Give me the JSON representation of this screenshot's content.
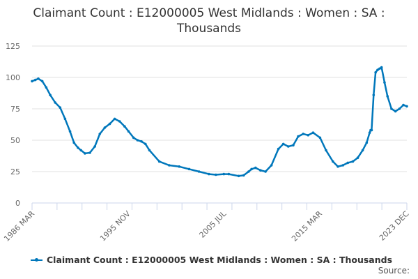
{
  "chart_data": {
    "type": "line",
    "title": "Claimant Count : E12000005 West Midlands : Women : SA : Thousands",
    "xlabel": "",
    "ylabel": "",
    "ylim": [
      0,
      125
    ],
    "yticks": [
      0,
      25,
      50,
      75,
      100,
      125
    ],
    "xtick_labels": [
      "1986 MAR",
      "1995 NOV",
      "2005 JUL",
      "2015 MAR",
      "2023 DEC"
    ],
    "grid": true,
    "legend_position": "bottom",
    "color": "#0077bb",
    "series": [
      {
        "name": "Claimant Count : E12000005 West Midlands : Women : SA : Thousands",
        "x": [
          1986.17,
          1986.5,
          1986.8,
          1987.2,
          1987.6,
          1988.0,
          1988.5,
          1989.0,
          1989.5,
          1990.0,
          1990.4,
          1990.8,
          1991.1,
          1991.5,
          1992.0,
          1992.5,
          1993.0,
          1993.5,
          1994.0,
          1994.5,
          1995.0,
          1995.5,
          1995.9,
          1996.4,
          1996.8,
          1997.2,
          1997.6,
          1998.0,
          1999.0,
          2000.0,
          2001.0,
          2002.0,
          2003.0,
          2004.0,
          2004.7,
          2005.5,
          2006.0,
          2007.0,
          2007.5,
          2008.0,
          2008.3,
          2008.7,
          2009.2,
          2009.7,
          2010.3,
          2011.0,
          2011.5,
          2012.0,
          2012.5,
          2013.0,
          2013.5,
          2014.0,
          2014.5,
          2015.2,
          2015.8,
          2016.5,
          2017.0,
          2017.5,
          2018.0,
          2018.5,
          2019.0,
          2019.5,
          2019.9,
          2020.2,
          2020.3,
          2020.4,
          2020.6,
          2020.8,
          2021.0,
          2021.2,
          2021.4,
          2021.7,
          2022.0,
          2022.4,
          2022.8,
          2023.2,
          2023.6,
          2023.95
        ],
        "values": [
          97,
          98,
          99,
          97,
          92,
          86,
          80,
          76,
          67,
          57,
          48,
          44,
          42,
          39.5,
          40,
          45,
          55,
          60,
          63,
          67,
          65,
          61,
          57,
          52,
          50,
          49,
          47,
          42,
          33,
          30,
          29,
          27,
          25,
          23,
          22.5,
          23,
          23,
          21.5,
          22,
          25,
          27,
          28,
          26,
          25,
          30,
          43,
          47,
          45,
          46,
          53,
          55,
          54,
          56,
          52,
          42,
          33,
          29,
          30,
          32,
          33,
          36,
          42,
          48,
          56,
          58,
          58,
          86,
          104,
          106,
          107,
          108,
          96,
          85,
          75,
          73,
          75,
          78,
          77
        ]
      }
    ]
  },
  "legend": {
    "label": "Claimant Count : E12000005 West Midlands : Women : SA : Thousands"
  },
  "footer": {
    "source_label": "Source:"
  }
}
